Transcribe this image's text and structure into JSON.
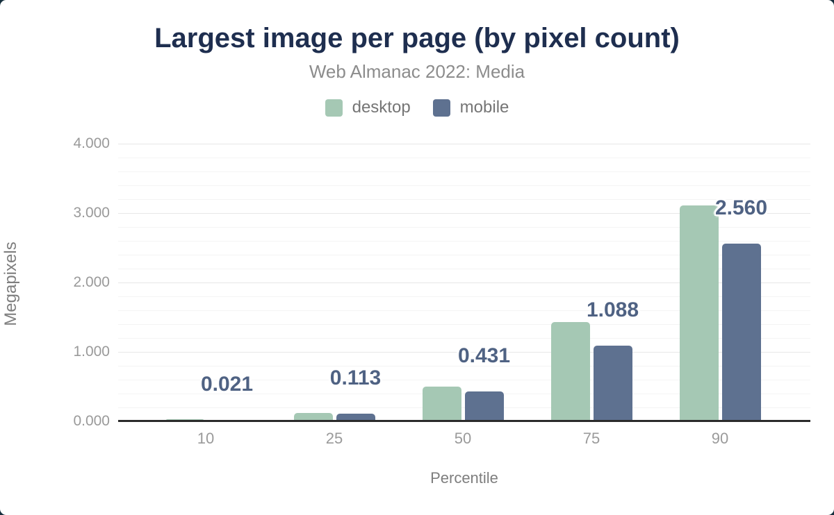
{
  "header": {
    "title": "Largest image per page (by pixel count)",
    "subtitle": "Web Almanac 2022: Media"
  },
  "colors": {
    "title": "#1e2e4f",
    "desktop": "#a5c8b4",
    "mobile": "#5e7190",
    "data_label": "#4f6283",
    "axis_text": "#9a9a9a",
    "corner_background": "#142e3c"
  },
  "chart_data": {
    "type": "bar",
    "title": "Largest image per page (by pixel count)",
    "subtitle": "Web Almanac 2022: Media",
    "xlabel": "Percentile",
    "ylabel": "Megapixels",
    "categories": [
      "10",
      "25",
      "50",
      "75",
      "90"
    ],
    "series": [
      {
        "name": "desktop",
        "color": "#a5c8b4",
        "values": [
          0.026,
          0.125,
          0.501,
          1.426,
          3.11
        ]
      },
      {
        "name": "mobile",
        "color": "#5e7190",
        "values": [
          0.021,
          0.113,
          0.431,
          1.088,
          2.56
        ]
      }
    ],
    "data_labels": {
      "on_series": "mobile",
      "values": [
        "0.021",
        "0.113",
        "0.431",
        "1.088",
        "2.560"
      ]
    },
    "ylim": [
      0,
      4
    ],
    "y_major_step": 1.0,
    "y_minor_step": 0.2,
    "y_tick_labels": [
      "0.000",
      "1.000",
      "2.000",
      "3.000",
      "4.000"
    ],
    "grid": "horizontal",
    "legend_position": "top"
  }
}
